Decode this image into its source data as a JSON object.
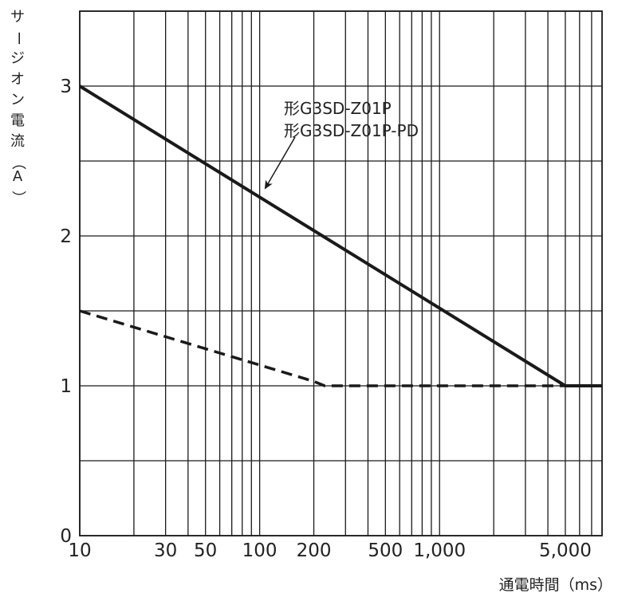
{
  "chart_data": {
    "type": "line",
    "title": "",
    "xlabel": "通電時間（ms）",
    "ylabel": "サージオン電流（A）",
    "x_scale": "log",
    "xlim": [
      10,
      8000
    ],
    "ylim": [
      0,
      3.5
    ],
    "grid": true,
    "x_ticks": [
      10,
      20,
      30,
      40,
      50,
      60,
      70,
      80,
      90,
      100,
      200,
      300,
      400,
      500,
      600,
      700,
      800,
      900,
      1000,
      2000,
      3000,
      4000,
      5000,
      6000,
      7000
    ],
    "x_tick_labels": [
      {
        "value": 10,
        "label": "10"
      },
      {
        "value": 30,
        "label": "30"
      },
      {
        "value": 50,
        "label": "50"
      },
      {
        "value": 100,
        "label": "100"
      },
      {
        "value": 200,
        "label": "200"
      },
      {
        "value": 500,
        "label": "500"
      },
      {
        "value": 1000,
        "label": "1,000"
      },
      {
        "value": 5000,
        "label": "5,000"
      }
    ],
    "y_ticks": [
      0,
      0.5,
      1,
      1.5,
      2,
      2.5,
      3,
      3.5
    ],
    "y_tick_labels": [
      {
        "value": 0,
        "label": "0"
      },
      {
        "value": 1,
        "label": "1"
      },
      {
        "value": 2,
        "label": "2"
      },
      {
        "value": 3,
        "label": "3"
      }
    ],
    "series": [
      {
        "style": "solid",
        "color": "#1a1a1a",
        "x": [
          10,
          5000,
          8000
        ],
        "y": [
          3.0,
          1.0,
          1.0
        ]
      },
      {
        "style": "dashed",
        "color": "#1a1a1a",
        "x": [
          10,
          200,
          230,
          8000
        ],
        "y": [
          1.5,
          1.03,
          1.0,
          1.0
        ]
      }
    ],
    "annotations": [
      {
        "lines": [
          "形G3SD-Z01P",
          "形G3SD-Z01P-PD"
        ],
        "arrow_to": {
          "x": 105,
          "y": 2.3
        }
      }
    ]
  }
}
